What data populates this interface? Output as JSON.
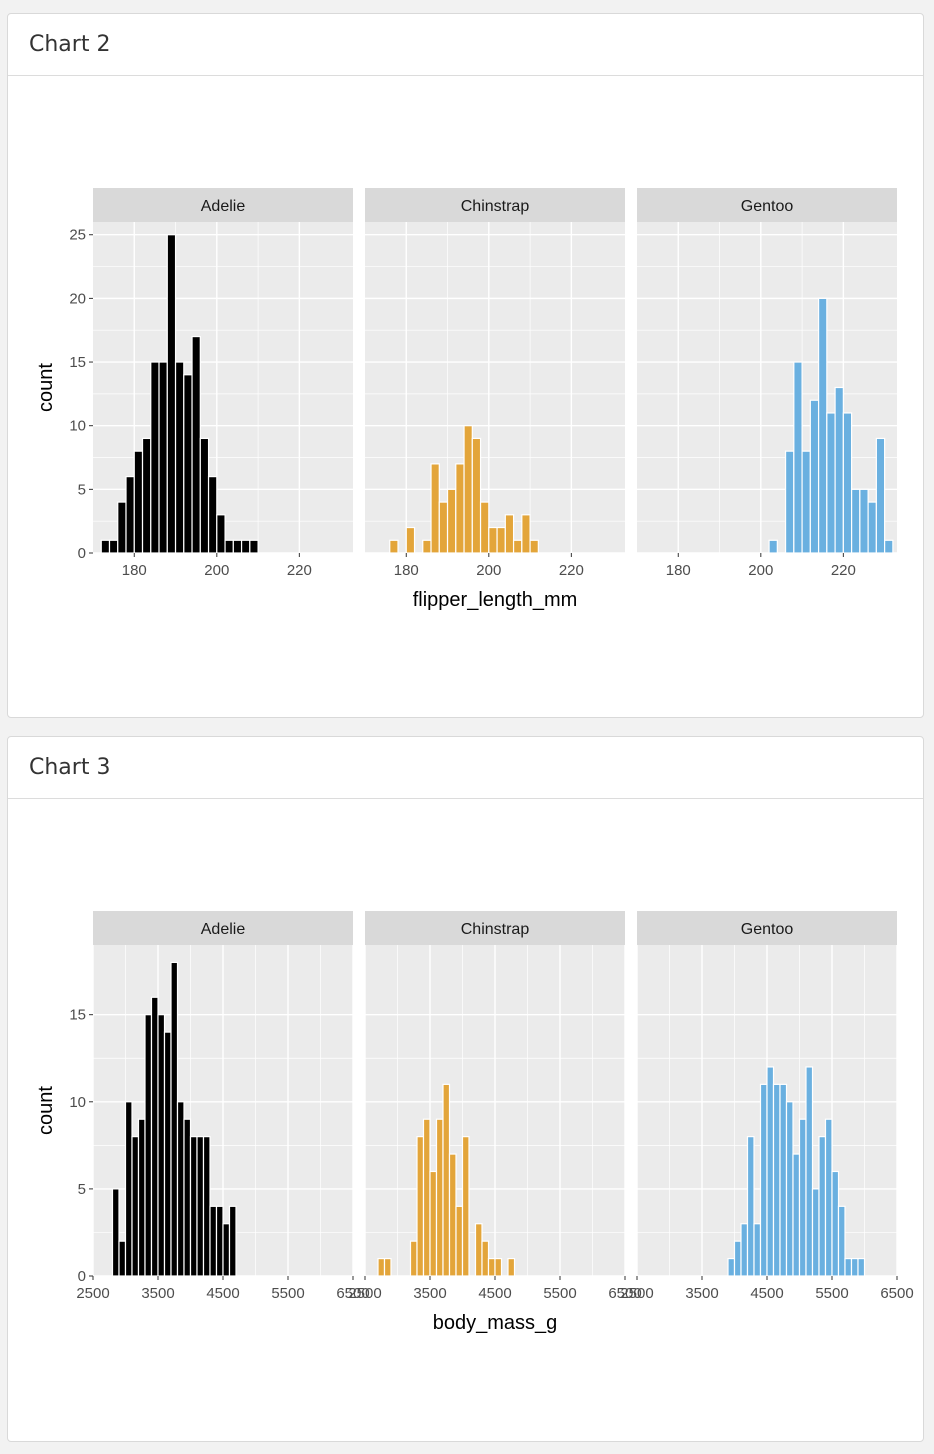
{
  "colors": {
    "Adelie": "#000000",
    "Chinstrap": "#E3A53A",
    "Gentoo": "#6AB0E0",
    "panel": "#EBEBEB",
    "strip": "#D9D9D9",
    "grid": "#FFFFFF"
  },
  "cards": [
    {
      "title": "Chart 2",
      "chart_data": {
        "type": "bar",
        "facet_by": "species",
        "panels": [
          "Adelie",
          "Chinstrap",
          "Gentoo"
        ],
        "xlabel": "flipper_length_mm",
        "ylabel": "count",
        "xlim": [
          170,
          233
        ],
        "ylim": [
          0,
          26
        ],
        "x_ticks": [
          180,
          200,
          220
        ],
        "x_tick_labels": [
          "180",
          "200",
          "220"
        ],
        "y_ticks": [
          0,
          5,
          10,
          15,
          20,
          25
        ],
        "y_tick_labels": [
          "0",
          "5",
          "10",
          "15",
          "20",
          "25"
        ],
        "grid": true,
        "bin_width": 2,
        "series": [
          {
            "name": "Adelie",
            "bins": [
              [
                173,
                1
              ],
              [
                175,
                1
              ],
              [
                177,
                4
              ],
              [
                179,
                6
              ],
              [
                181,
                8
              ],
              [
                183,
                9
              ],
              [
                185,
                15
              ],
              [
                187,
                15
              ],
              [
                189,
                25
              ],
              [
                191,
                15
              ],
              [
                193,
                14
              ],
              [
                195,
                17
              ],
              [
                197,
                9
              ],
              [
                199,
                6
              ],
              [
                201,
                3
              ],
              [
                203,
                1
              ],
              [
                205,
                1
              ],
              [
                207,
                1
              ],
              [
                209,
                1
              ]
            ]
          },
          {
            "name": "Chinstrap",
            "bins": [
              [
                177,
                1
              ],
              [
                181,
                2
              ],
              [
                185,
                1
              ],
              [
                187,
                7
              ],
              [
                189,
                4
              ],
              [
                191,
                5
              ],
              [
                193,
                7
              ],
              [
                195,
                10
              ],
              [
                197,
                9
              ],
              [
                199,
                4
              ],
              [
                201,
                2
              ],
              [
                203,
                2
              ],
              [
                205,
                3
              ],
              [
                207,
                1
              ],
              [
                209,
                3
              ],
              [
                211,
                1
              ]
            ]
          },
          {
            "name": "Gentoo",
            "bins": [
              [
                203,
                1
              ],
              [
                207,
                8
              ],
              [
                209,
                15
              ],
              [
                211,
                8
              ],
              [
                213,
                12
              ],
              [
                215,
                20
              ],
              [
                217,
                11
              ],
              [
                219,
                13
              ],
              [
                221,
                11
              ],
              [
                223,
                5
              ],
              [
                225,
                5
              ],
              [
                227,
                4
              ],
              [
                229,
                9
              ],
              [
                231,
                1
              ]
            ]
          }
        ]
      }
    },
    {
      "title": "Chart 3",
      "chart_data": {
        "type": "bar",
        "facet_by": "species",
        "panels": [
          "Adelie",
          "Chinstrap",
          "Gentoo"
        ],
        "xlabel": "body_mass_g",
        "ylabel": "count",
        "xlim": [
          2500,
          6500
        ],
        "ylim": [
          0,
          19
        ],
        "x_ticks": [
          2500,
          3500,
          4500,
          5500,
          6500
        ],
        "x_tick_labels": [
          "2500",
          "3500",
          "4500",
          "5500",
          "6500"
        ],
        "y_ticks": [
          0,
          5,
          10,
          15
        ],
        "y_tick_labels": [
          "0",
          "5",
          "10",
          "15"
        ],
        "grid": true,
        "bin_width": 100,
        "series": [
          {
            "name": "Adelie",
            "bins": [
              [
                2850,
                5
              ],
              [
                2950,
                2
              ],
              [
                3050,
                10
              ],
              [
                3150,
                8
              ],
              [
                3250,
                9
              ],
              [
                3350,
                15
              ],
              [
                3450,
                16
              ],
              [
                3550,
                15
              ],
              [
                3650,
                14
              ],
              [
                3750,
                18
              ],
              [
                3850,
                10
              ],
              [
                3950,
                9
              ],
              [
                4050,
                8
              ],
              [
                4150,
                8
              ],
              [
                4250,
                8
              ],
              [
                4350,
                4
              ],
              [
                4450,
                4
              ],
              [
                4550,
                3
              ],
              [
                4650,
                4
              ]
            ]
          },
          {
            "name": "Chinstrap",
            "bins": [
              [
                2750,
                1
              ],
              [
                2850,
                1
              ],
              [
                3250,
                2
              ],
              [
                3350,
                8
              ],
              [
                3450,
                9
              ],
              [
                3550,
                6
              ],
              [
                3650,
                9
              ],
              [
                3750,
                11
              ],
              [
                3850,
                7
              ],
              [
                3950,
                4
              ],
              [
                4050,
                8
              ],
              [
                4250,
                3
              ],
              [
                4350,
                2
              ],
              [
                4450,
                1
              ],
              [
                4550,
                1
              ],
              [
                4750,
                1
              ]
            ]
          },
          {
            "name": "Gentoo",
            "bins": [
              [
                3950,
                1
              ],
              [
                4050,
                2
              ],
              [
                4150,
                3
              ],
              [
                4250,
                8
              ],
              [
                4350,
                3
              ],
              [
                4450,
                11
              ],
              [
                4550,
                12
              ],
              [
                4650,
                11
              ],
              [
                4750,
                11
              ],
              [
                4850,
                10
              ],
              [
                4950,
                7
              ],
              [
                5050,
                9
              ],
              [
                5150,
                12
              ],
              [
                5250,
                5
              ],
              [
                5350,
                8
              ],
              [
                5450,
                9
              ],
              [
                5550,
                6
              ],
              [
                5650,
                4
              ],
              [
                5750,
                1
              ],
              [
                5850,
                1
              ],
              [
                5950,
                1
              ]
            ]
          }
        ]
      }
    }
  ]
}
